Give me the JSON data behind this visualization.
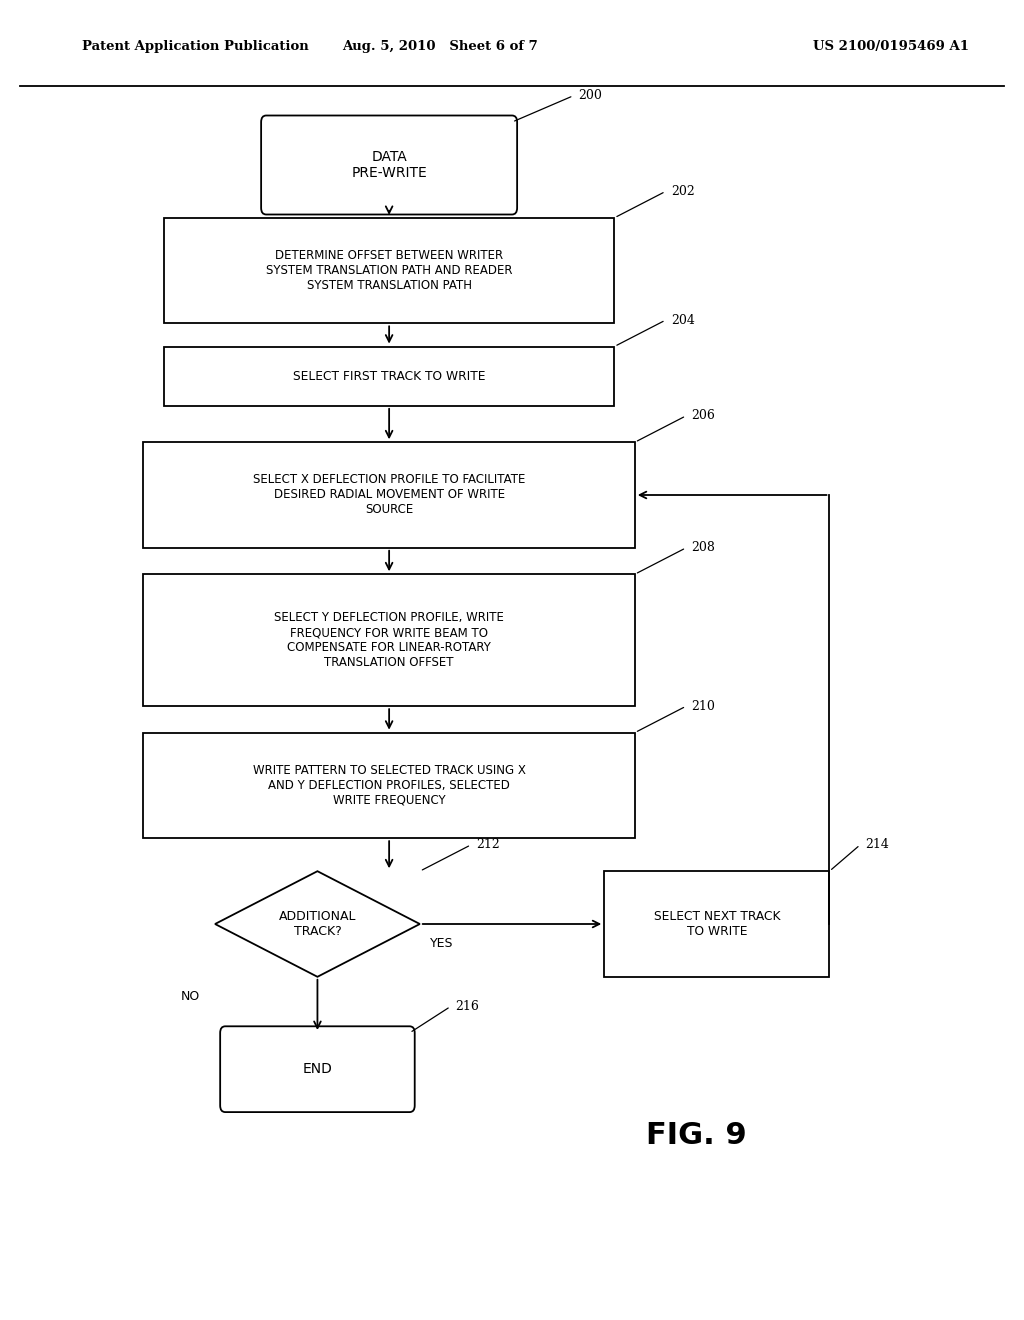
{
  "bg_color": "#ffffff",
  "header_left": "Patent Application Publication",
  "header_center": "Aug. 5, 2010   Sheet 6 of 7",
  "header_right": "US 2100/0195469 A1",
  "fig_label": "FIG. 9",
  "line_color": "#000000",
  "text_color": "#000000"
}
